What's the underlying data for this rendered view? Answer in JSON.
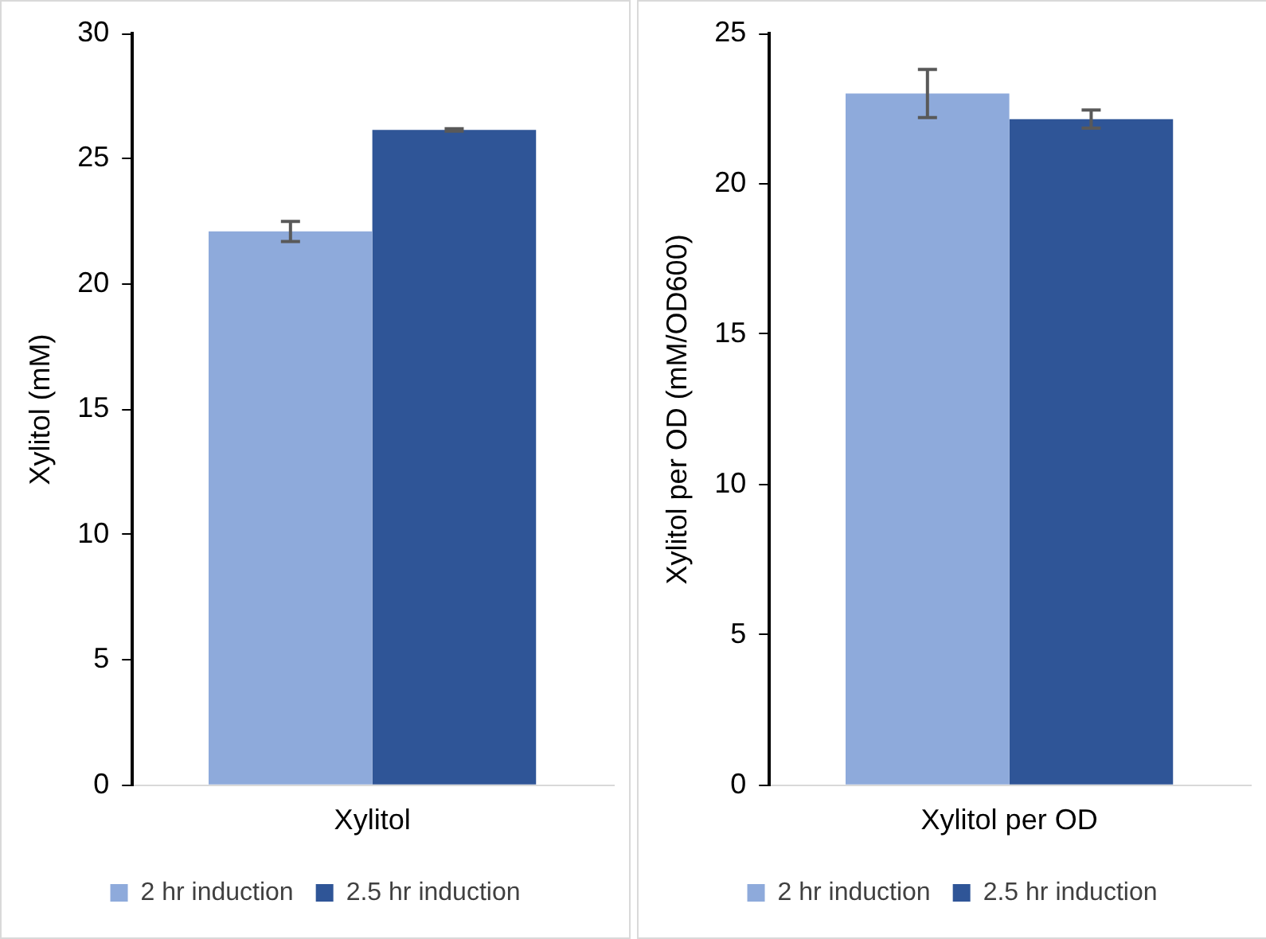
{
  "chart_data": [
    {
      "type": "bar",
      "ylabel": "Xylitol (mM)",
      "categories": [
        "Xylitol"
      ],
      "ylim": [
        0,
        30
      ],
      "yticks": [
        0,
        5,
        10,
        15,
        20,
        25,
        30
      ],
      "grid": false,
      "legend": "bottom",
      "series": [
        {
          "name": "2 hr induction",
          "color": "#8eaadb",
          "values": [
            22.1
          ],
          "errors": [
            0.4
          ]
        },
        {
          "name": "2.5 hr induction",
          "color": "#2f5597",
          "values": [
            26.15
          ],
          "errors": [
            0.05
          ]
        }
      ]
    },
    {
      "type": "bar",
      "ylabel": "Xylitol per OD (mM/OD600)",
      "categories": [
        "Xylitol per OD"
      ],
      "ylim": [
        0,
        25
      ],
      "yticks": [
        0,
        5,
        10,
        15,
        20,
        25
      ],
      "grid": false,
      "legend": "bottom",
      "series": [
        {
          "name": "2 hr induction",
          "color": "#8eaadb",
          "values": [
            23.0
          ],
          "errors": [
            0.8
          ]
        },
        {
          "name": "2.5 hr induction",
          "color": "#2f5597",
          "values": [
            22.15
          ],
          "errors": [
            0.3
          ]
        }
      ]
    }
  ]
}
